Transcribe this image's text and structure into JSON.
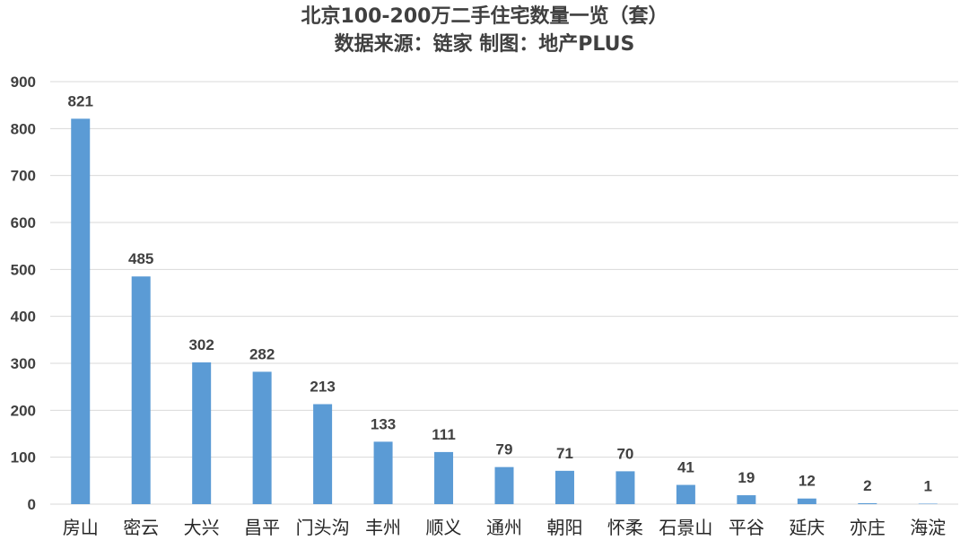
{
  "chart_data": {
    "type": "bar",
    "title": "北京100-200万二手住宅数量一览（套）",
    "subtitle": "数据来源：链家 制图：地产PLUS",
    "categories": [
      "房山",
      "密云",
      "大兴",
      "昌平",
      "门头沟",
      "丰州",
      "顺义",
      "通州",
      "朝阳",
      "怀柔",
      "石景山",
      "平谷",
      "延庆",
      "亦庄",
      "海淀"
    ],
    "values": [
      821,
      485,
      302,
      282,
      213,
      133,
      111,
      79,
      71,
      70,
      41,
      19,
      12,
      2,
      1
    ],
    "data_labels": [
      "821",
      "485",
      "302",
      "282",
      "213",
      "133",
      "111",
      "79",
      "71",
      "70",
      "41",
      "19",
      "12",
      "2",
      "1"
    ],
    "xlabel": "",
    "ylabel": "",
    "ylim": [
      0,
      900
    ],
    "yticks": [
      0,
      100,
      200,
      300,
      400,
      500,
      600,
      700,
      800,
      900
    ],
    "ytick_labels": [
      "0",
      "100",
      "200",
      "300",
      "400",
      "500",
      "600",
      "700",
      "800",
      "900"
    ],
    "grid": true,
    "legend": "none",
    "bar_color": "#5b9bd5"
  }
}
